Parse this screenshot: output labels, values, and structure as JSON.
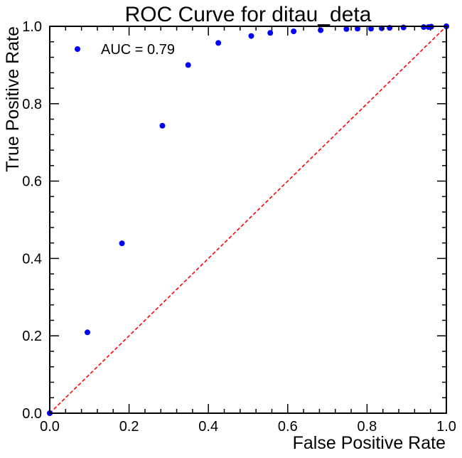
{
  "chart_data": {
    "type": "scatter",
    "title": "ROC Curve for ditau_deta",
    "xlabel": "False Positive Rate",
    "ylabel": "True Positive Rate",
    "xlim": [
      0.0,
      1.0
    ],
    "ylim": [
      0.0,
      1.0
    ],
    "xticks": [
      "0.0",
      "0.2",
      "0.4",
      "0.6",
      "0.8",
      "1.0"
    ],
    "yticks": [
      "0.0",
      "0.2",
      "0.4",
      "0.6",
      "0.8",
      "1.0"
    ],
    "grid": false,
    "legend": {
      "position": "top-left",
      "entries": [
        "AUC = 0.79"
      ]
    },
    "series": [
      {
        "name": "AUC = 0.79",
        "color": "#0000ff",
        "x": [
          0.0,
          0.095,
          0.182,
          0.284,
          0.349,
          0.425,
          0.508,
          0.556,
          0.615,
          0.683,
          0.748,
          0.776,
          0.81,
          0.837,
          0.857,
          0.892,
          0.943,
          0.955,
          0.962,
          1.0
        ],
        "y": [
          0.0,
          0.209,
          0.439,
          0.743,
          0.9,
          0.957,
          0.975,
          0.983,
          0.987,
          0.99,
          0.993,
          0.994,
          0.994,
          0.995,
          0.996,
          0.997,
          0.998,
          0.998,
          0.999,
          1.0
        ]
      }
    ],
    "reference_line": {
      "style": "dashed",
      "color": "#ff0000",
      "x": [
        0,
        1
      ],
      "y": [
        0,
        1
      ]
    }
  }
}
